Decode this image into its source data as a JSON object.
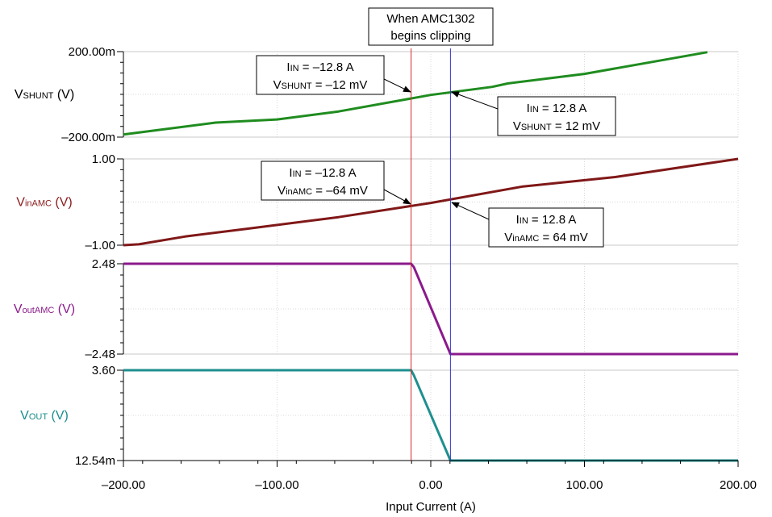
{
  "chart_data": {
    "type": "line",
    "xlabel": "Input Current (A)",
    "xlim": [
      -200,
      200
    ],
    "xticks": [
      "–200.00",
      "–100.00",
      "0.00",
      "100.00",
      "200.00"
    ],
    "xtick_values": [
      -200,
      -100,
      0,
      100,
      200
    ],
    "markers": [
      {
        "x": -12.8,
        "color": "#d62828"
      },
      {
        "x": 12.8,
        "color": "#3333cc"
      }
    ],
    "callout": {
      "line1": "When AMC1302",
      "line2": "begins clipping"
    },
    "panels": [
      {
        "ylabel_main": "V",
        "ylabel_sub": "SHUNT",
        "ylabel_unit": " (V)",
        "ylabel_color": "#000000",
        "ylim": [
          -0.2,
          0.2
        ],
        "ytick_top": "200.00m",
        "ytick_bottom": "–200.00m",
        "series": {
          "color": "#1f8c1f",
          "x": [
            -200,
            -140,
            -100,
            -60,
            0,
            40,
            50,
            100,
            180
          ],
          "y": [
            -0.1875,
            -0.132,
            -0.1175,
            -0.08,
            -0.0025,
            0.035,
            0.051,
            0.096,
            0.1975
          ]
        },
        "annotations": [
          {
            "l1_main": "I",
            "l1_sub": "IN",
            "l1_rest": " = –12.8 A",
            "l2_main": "V",
            "l2_sub": "SHUNT",
            "l2_rest": " = –12 mV"
          },
          {
            "l1_main": "I",
            "l1_sub": "IN",
            "l1_rest": " = 12.8 A",
            "l2_main": "V",
            "l2_sub": "SHUNT",
            "l2_rest": " = 12 mV"
          }
        ]
      },
      {
        "ylabel_main": "V",
        "ylabel_sub": "inAMC",
        "ylabel_unit": " (V)",
        "ylabel_color": "#8b1a1a",
        "ylim": [
          -1,
          1
        ],
        "ytick_top": "1.00",
        "ytick_bottom": "–1.00",
        "series": {
          "color": "#801818",
          "x": [
            -200,
            -190,
            -160,
            -120,
            -60,
            0,
            60,
            120,
            200
          ],
          "y": [
            -1.0,
            -0.98,
            -0.8,
            -0.62,
            -0.35,
            -0.02,
            0.36,
            0.58,
            1.0
          ]
        },
        "annotations": [
          {
            "l1_main": "I",
            "l1_sub": "IN",
            "l1_rest": " = –12.8 A",
            "l2_main": "V",
            "l2_sub": "inAMC",
            "l2_rest": " = –64 mV"
          },
          {
            "l1_main": "I",
            "l1_sub": "IN",
            "l1_rest": " = 12.8 A",
            "l2_main": "V",
            "l2_sub": "inAMC",
            "l2_rest": " = 64 mV"
          }
        ]
      },
      {
        "ylabel_main": "V",
        "ylabel_sub": "outAMC",
        "ylabel_unit": " (V)",
        "ylabel_color": "#8b1a8b",
        "ylim": [
          -2.48,
          2.48
        ],
        "ytick_top": "2.48",
        "ytick_bottom": "–2.48",
        "series": {
          "color": "#8b1a8b",
          "x": [
            -200,
            -12.8,
            -11,
            12.8,
            200
          ],
          "y": [
            2.48,
            2.48,
            2.3,
            -2.48,
            -2.48
          ]
        },
        "annotations": []
      },
      {
        "ylabel_main": "V",
        "ylabel_sub": "OUT",
        "ylabel_unit": " (V)",
        "ylabel_color": "#1a8b8b",
        "ylim": [
          0.01254,
          3.6
        ],
        "ytick_top": "3.60",
        "ytick_bottom": "12.54m",
        "series": {
          "color": "#1f8f8f",
          "x": [
            -200,
            -12.8,
            -11,
            12.8,
            200
          ],
          "y": [
            3.6,
            3.6,
            3.4,
            0.01254,
            0.01254
          ]
        },
        "annotations": []
      }
    ]
  }
}
